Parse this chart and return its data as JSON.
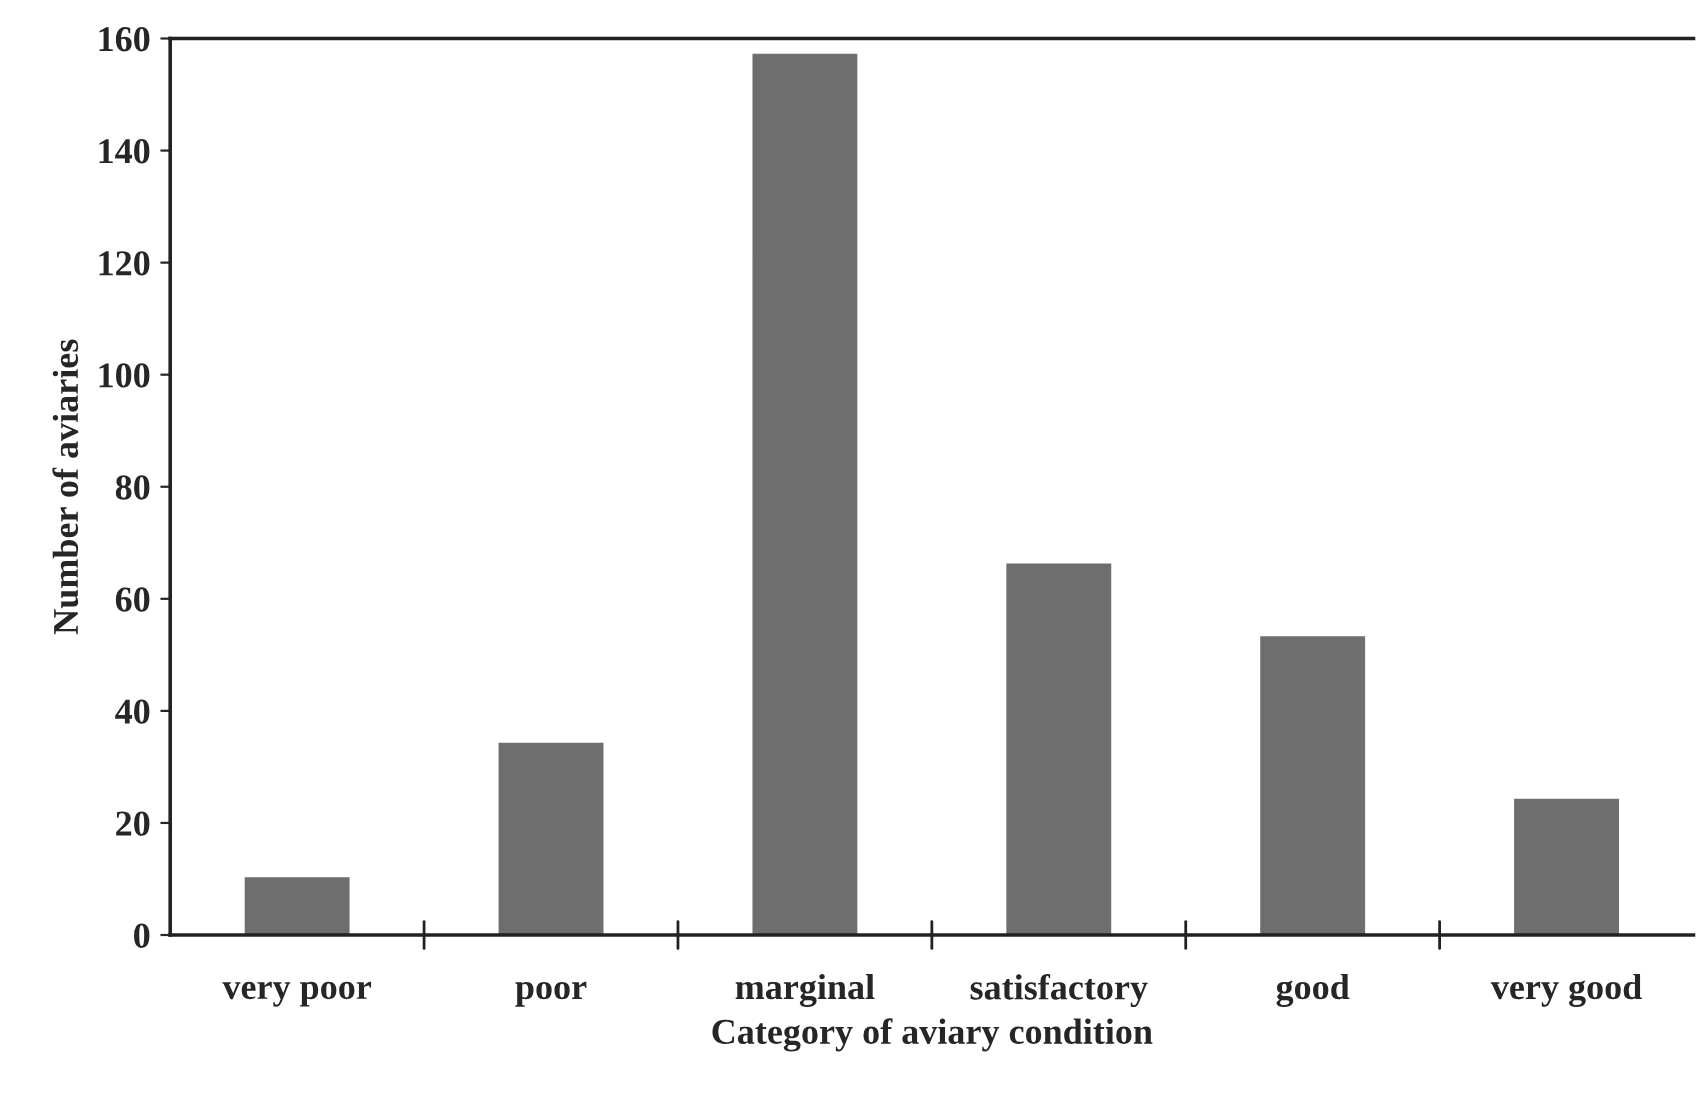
{
  "chart_data": {
    "type": "bar",
    "xlabel": "Category of aviary condition",
    "ylabel": "Number of aviaries",
    "categories": [
      "very poor",
      "poor",
      "marginal",
      "satisfactory",
      "good",
      "very good"
    ],
    "values": [
      10,
      34,
      157,
      66,
      53,
      24
    ],
    "color": "#6e6e6e",
    "ylim": [
      0,
      160
    ],
    "yticks": [
      0,
      20,
      40,
      60,
      80,
      100,
      120,
      140,
      160
    ],
    "grid": false,
    "legend": false
  }
}
